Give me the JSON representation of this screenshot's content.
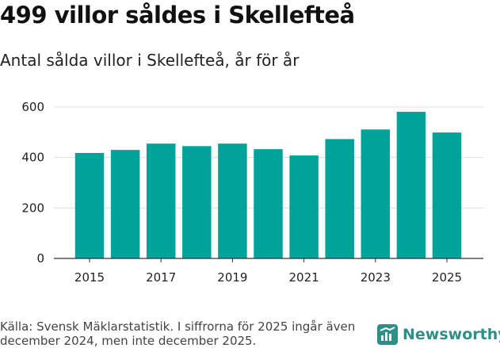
{
  "title": "499 villor såldes i Skellefteå",
  "subtitle": "Antal sålda villor i Skellefteå, år för år",
  "footer": {
    "source": "Källa: Svensk Mäklarstatistik. I siffrorna för 2025 ingår även december 2024, men inte december 2025.",
    "brand": "Newsworthy"
  },
  "colors": {
    "bar": "#00a39a",
    "grid": "#dddddd",
    "brand": "#2e8f86"
  },
  "chart_data": {
    "type": "bar",
    "title": "499 villor såldes i Skellefteå",
    "subtitle": "Antal sålda villor i Skellefteå, år för år",
    "xlabel": "",
    "ylabel": "",
    "categories": [
      "2015",
      "2016",
      "2017",
      "2018",
      "2019",
      "2020",
      "2021",
      "2022",
      "2023",
      "2024",
      "2025"
    ],
    "values": [
      418,
      430,
      455,
      445,
      455,
      433,
      408,
      473,
      511,
      581,
      499
    ],
    "x_tick_labels": [
      "2015",
      "2017",
      "2019",
      "2021",
      "2023",
      "2025"
    ],
    "y_ticks": [
      0,
      200,
      400,
      600
    ],
    "ylim": [
      0,
      600
    ],
    "grid": true,
    "legend": "none"
  }
}
